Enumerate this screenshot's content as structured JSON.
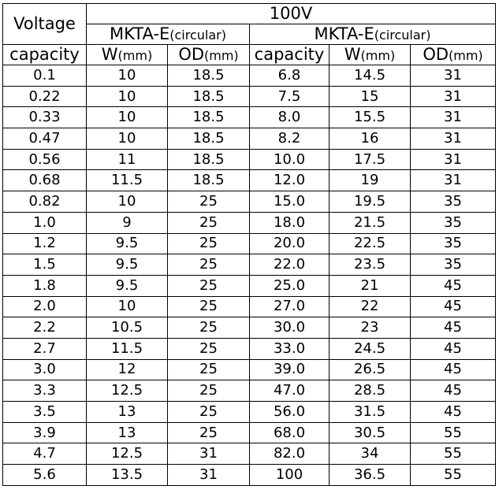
{
  "header": {
    "voltage_label": "Voltage",
    "group_label": "100V",
    "series_left": {
      "main": "MKTA-E",
      "sub": "(circular)"
    },
    "series_right": {
      "main": "MKTA-E",
      "sub": "(circular)"
    },
    "columns": {
      "capacity": "capacity",
      "w_main": "W",
      "w_unit": "(mm)",
      "od_main": "OD",
      "od_unit": "(mm)"
    }
  },
  "rows": [
    [
      "0.1",
      "10",
      "18.5",
      "6.8",
      "14.5",
      "31"
    ],
    [
      "0.22",
      "10",
      "18.5",
      "7.5",
      "15",
      "31"
    ],
    [
      "0.33",
      "10",
      "18.5",
      "8.0",
      "15.5",
      "31"
    ],
    [
      "0.47",
      "10",
      "18.5",
      "8.2",
      "16",
      "31"
    ],
    [
      "0.56",
      "11",
      "18.5",
      "10.0",
      "17.5",
      "31"
    ],
    [
      "0.68",
      "11.5",
      "18.5",
      "12.0",
      "19",
      "31"
    ],
    [
      "0.82",
      "10",
      "25",
      "15.0",
      "19.5",
      "35"
    ],
    [
      "1.0",
      "9",
      "25",
      "18.0",
      "21.5",
      "35"
    ],
    [
      "1.2",
      "9.5",
      "25",
      "20.0",
      "22.5",
      "35"
    ],
    [
      "1.5",
      "9.5",
      "25",
      "22.0",
      "23.5",
      "35"
    ],
    [
      "1.8",
      "9.5",
      "25",
      "25.0",
      "21",
      "45"
    ],
    [
      "2.0",
      "10",
      "25",
      "27.0",
      "22",
      "45"
    ],
    [
      "2.2",
      "10.5",
      "25",
      "30.0",
      "23",
      "45"
    ],
    [
      "2.7",
      "11.5",
      "25",
      "33.0",
      "24.5",
      "45"
    ],
    [
      "3.0",
      "12",
      "25",
      "39.0",
      "26.5",
      "45"
    ],
    [
      "3.3",
      "12.5",
      "25",
      "47.0",
      "28.5",
      "45"
    ],
    [
      "3.5",
      "13",
      "25",
      "56.0",
      "31.5",
      "45"
    ],
    [
      "3.9",
      "13",
      "25",
      "68.0",
      "30.5",
      "55"
    ],
    [
      "4.7",
      "12.5",
      "31",
      "82.0",
      "34",
      "55"
    ],
    [
      "5.6",
      "13.5",
      "31",
      "100",
      "36.5",
      "55"
    ]
  ]
}
